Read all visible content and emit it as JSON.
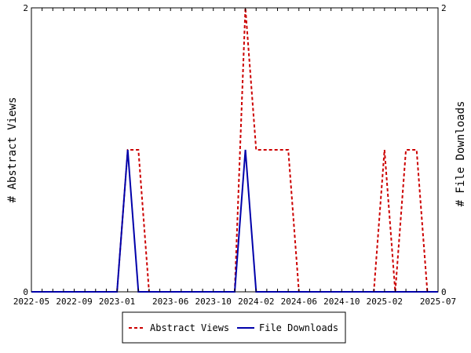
{
  "chart_data": {
    "type": "line",
    "x_tick_labels": [
      "2022-05",
      "2022-09",
      "2023-01",
      "2023-06",
      "2023-10",
      "2024-02",
      "2024-06",
      "2024-10",
      "2025-02",
      "2025-07"
    ],
    "x_tick_dates": [
      "2022-05-01",
      "2022-09-01",
      "2023-01-01",
      "2023-06-01",
      "2023-10-01",
      "2024-02-01",
      "2024-06-01",
      "2024-10-01",
      "2025-02-01",
      "2025-07-01"
    ],
    "x_range": [
      "2022-05-01",
      "2025-07-01"
    ],
    "left_axis": {
      "label": "# Abstract Views",
      "range": [
        0,
        2
      ],
      "tick_labels": [
        "0",
        "2"
      ]
    },
    "right_axis": {
      "label": "# File Downloads",
      "range": [
        0,
        2
      ],
      "tick_labels": [
        "0",
        "2"
      ]
    },
    "grid": false,
    "legend_position": "bottom",
    "series": [
      {
        "name": "Abstract Views",
        "axis": "left",
        "color": "#cc0000",
        "style": "dashed",
        "points": [
          [
            "2022-05-01",
            0
          ],
          [
            "2023-01-01",
            0
          ],
          [
            "2023-02-01",
            1
          ],
          [
            "2023-03-01",
            1
          ],
          [
            "2023-04-01",
            0
          ],
          [
            "2023-12-01",
            0
          ],
          [
            "2024-01-01",
            2
          ],
          [
            "2024-02-01",
            1
          ],
          [
            "2024-03-01",
            1
          ],
          [
            "2024-04-01",
            1
          ],
          [
            "2024-05-01",
            1
          ],
          [
            "2024-06-01",
            0
          ],
          [
            "2025-01-01",
            0
          ],
          [
            "2025-02-01",
            1
          ],
          [
            "2025-03-01",
            0
          ],
          [
            "2025-04-01",
            1
          ],
          [
            "2025-05-01",
            1
          ],
          [
            "2025-06-01",
            0
          ],
          [
            "2025-07-01",
            0
          ]
        ]
      },
      {
        "name": "File Downloads",
        "axis": "right",
        "color": "#0000aa",
        "style": "solid",
        "points": [
          [
            "2022-05-01",
            0
          ],
          [
            "2023-01-01",
            0
          ],
          [
            "2023-02-01",
            1
          ],
          [
            "2023-03-01",
            0
          ],
          [
            "2023-12-01",
            0
          ],
          [
            "2024-01-01",
            1
          ],
          [
            "2024-02-01",
            0
          ],
          [
            "2025-07-01",
            0
          ]
        ]
      }
    ]
  }
}
